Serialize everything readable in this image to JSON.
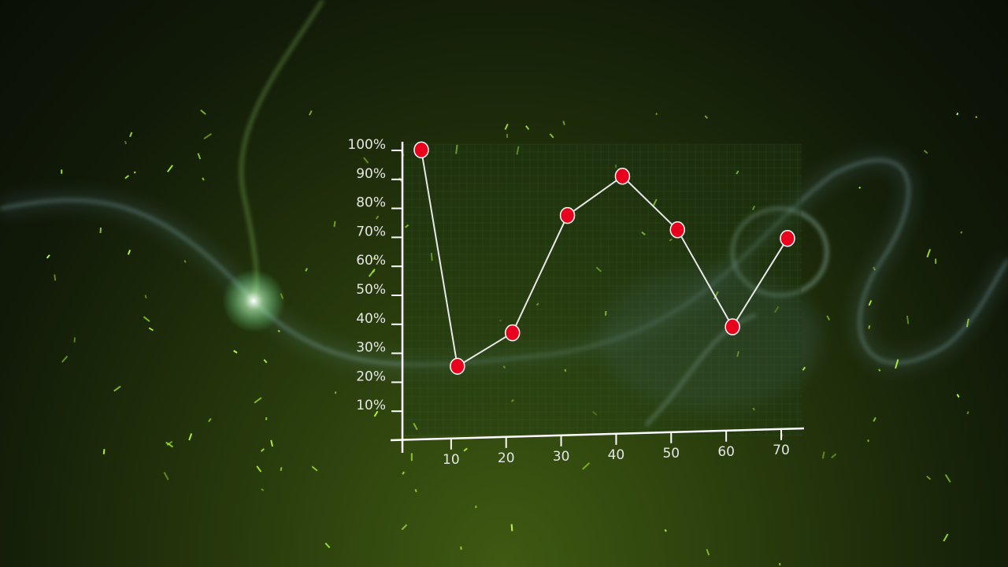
{
  "chart_data": {
    "type": "line",
    "title": "",
    "xlabel": "",
    "ylabel": "",
    "x": [
      2,
      10,
      20,
      30,
      40,
      50,
      60,
      70
    ],
    "values": [
      100,
      25,
      36,
      76,
      89,
      70,
      36,
      66
    ],
    "xlim": [
      0,
      72
    ],
    "ylim": [
      0,
      100
    ],
    "x_ticks": [
      "10",
      "20",
      "30",
      "40",
      "50",
      "60",
      "70"
    ],
    "y_ticks": [
      "10%",
      "20%",
      "30%",
      "40%",
      "50%",
      "60%",
      "70%",
      "80%",
      "90%",
      "100%"
    ],
    "grid": true,
    "colors": {
      "line": "#e8e8e8",
      "marker": "#e8001c",
      "marker_edge": "#ffffff",
      "axis": "#ffffff",
      "grid": "#4a6a3a"
    }
  }
}
